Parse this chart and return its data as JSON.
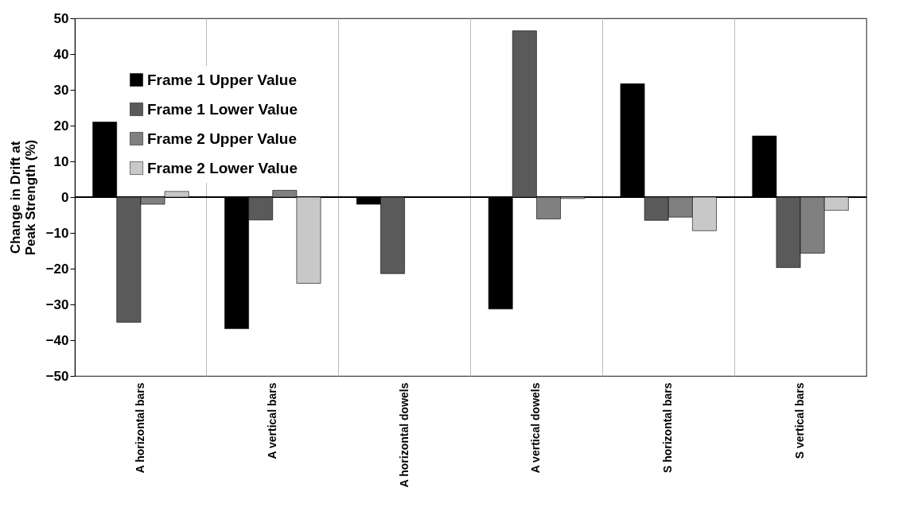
{
  "chart_data": {
    "type": "bar",
    "ylabel": "Change  in Drift at Peak Strength (%)",
    "categories": [
      "A horizontal bars",
      "A vertical bars",
      "A horizontal dowels",
      "A vertical dowels",
      "S horizontal bars",
      "S vertical bars"
    ],
    "series": [
      {
        "name": "Frame 1 Upper Value",
        "color": "#000000",
        "values": [
          21,
          -36.8,
          -2,
          -31.3,
          31.7,
          17.1
        ]
      },
      {
        "name": "Frame 1 Lower Value",
        "color": "#5a5a5a",
        "values": [
          -35,
          -6.4,
          -21.4,
          46.5,
          -6.5,
          -19.7
        ]
      },
      {
        "name": "Frame 2 Upper Value",
        "color": "#808080",
        "values": [
          -2,
          1.9,
          null,
          -6.1,
          -5.6,
          -15.7
        ]
      },
      {
        "name": "Frame 2 Lower Value",
        "color": "#c8c8c8",
        "values": [
          1.6,
          -24.1,
          null,
          -0.4,
          -9.4,
          -3.7
        ]
      }
    ],
    "ylim": [
      -50,
      50
    ],
    "yticks": [
      -50,
      -40,
      -30,
      -20,
      -10,
      0,
      10,
      20,
      30,
      40,
      50
    ],
    "grid": "x",
    "legend": "top left"
  }
}
